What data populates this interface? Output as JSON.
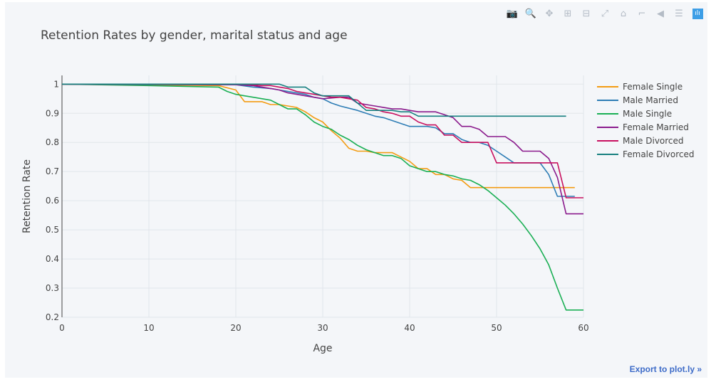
{
  "modebar": {
    "buttons": [
      {
        "name": "camera-icon",
        "glyph": "📷"
      },
      {
        "name": "zoom-icon",
        "glyph": "🔍"
      },
      {
        "name": "pan-icon",
        "glyph": "✥"
      },
      {
        "name": "zoom-in-icon",
        "glyph": "⊞"
      },
      {
        "name": "zoom-out-icon",
        "glyph": "⊟"
      },
      {
        "name": "autoscale-icon",
        "glyph": "⤢"
      },
      {
        "name": "home-icon",
        "glyph": "⌂"
      },
      {
        "name": "spike-lines-icon",
        "glyph": "⌐"
      },
      {
        "name": "hover-closest-icon",
        "glyph": "◀"
      },
      {
        "name": "hover-compare-icon",
        "glyph": "☰"
      },
      {
        "name": "plotly-logo-icon",
        "glyph": "ılı"
      }
    ]
  },
  "export_link": "Export to plot.ly »",
  "chart_data": {
    "type": "line",
    "title": "Retention Rates by gender, marital status and age",
    "xlabel": "Age",
    "ylabel": "Retention Rate",
    "xlim": [
      0,
      60
    ],
    "ylim": [
      0.2,
      1.03
    ],
    "xticks": [
      0,
      10,
      20,
      30,
      40,
      50,
      60
    ],
    "yticks": [
      0.2,
      0.3,
      0.4,
      0.5,
      0.6,
      0.7,
      0.8,
      0.9,
      1
    ],
    "grid": true,
    "legend_position": "right",
    "series": [
      {
        "name": "Female Single",
        "color": "#f39c12",
        "x": [
          0,
          18,
          20,
          21,
          23,
          24,
          25,
          26,
          27,
          28,
          29,
          30,
          31,
          32,
          33,
          34,
          35,
          36,
          37,
          38,
          39,
          40,
          41,
          42,
          43,
          44,
          45,
          46,
          47,
          48,
          49,
          50,
          55,
          58,
          59
        ],
        "y": [
          1,
          0.995,
          0.98,
          0.94,
          0.94,
          0.93,
          0.93,
          0.925,
          0.92,
          0.905,
          0.885,
          0.87,
          0.84,
          0.815,
          0.78,
          0.77,
          0.77,
          0.765,
          0.765,
          0.765,
          0.75,
          0.735,
          0.71,
          0.71,
          0.69,
          0.69,
          0.675,
          0.67,
          0.645,
          0.645,
          0.645,
          0.645,
          0.645,
          0.645,
          0.645
        ]
      },
      {
        "name": "Male Married",
        "color": "#2e7db5",
        "x": [
          0,
          20,
          22,
          24,
          25,
          26,
          27,
          28,
          29,
          30,
          31,
          32,
          34,
          35,
          36,
          37,
          38,
          39,
          40,
          41,
          42,
          43,
          44,
          45,
          46,
          47,
          48,
          49,
          50,
          51,
          52,
          53,
          54,
          55,
          56,
          57,
          58,
          59
        ],
        "y": [
          1,
          0.998,
          0.99,
          0.985,
          0.98,
          0.975,
          0.97,
          0.965,
          0.955,
          0.95,
          0.935,
          0.925,
          0.91,
          0.9,
          0.89,
          0.885,
          0.875,
          0.865,
          0.855,
          0.855,
          0.855,
          0.85,
          0.83,
          0.83,
          0.81,
          0.8,
          0.8,
          0.79,
          0.77,
          0.75,
          0.73,
          0.73,
          0.73,
          0.73,
          0.69,
          0.615,
          0.615,
          0.615
        ]
      },
      {
        "name": "Male Single",
        "color": "#1aaf54",
        "x": [
          0,
          10,
          18,
          19,
          20,
          21,
          22,
          24,
          25,
          26,
          27,
          28,
          29,
          30,
          31,
          32,
          33,
          34,
          35,
          36,
          37,
          38,
          39,
          40,
          41,
          42,
          43,
          44,
          45,
          46,
          47,
          48,
          49,
          50,
          51,
          52,
          53,
          54,
          55,
          56,
          57,
          58,
          59,
          60
        ],
        "y": [
          1,
          0.995,
          0.99,
          0.975,
          0.965,
          0.96,
          0.955,
          0.945,
          0.93,
          0.915,
          0.915,
          0.895,
          0.87,
          0.855,
          0.845,
          0.825,
          0.81,
          0.79,
          0.775,
          0.765,
          0.755,
          0.755,
          0.745,
          0.72,
          0.71,
          0.7,
          0.7,
          0.69,
          0.685,
          0.675,
          0.67,
          0.655,
          0.635,
          0.61,
          0.585,
          0.555,
          0.52,
          0.48,
          0.435,
          0.38,
          0.3,
          0.225,
          0.225,
          0.225
        ]
      },
      {
        "name": "Female Married",
        "color": "#8a1a8c",
        "x": [
          0,
          20,
          22,
          23,
          24,
          25,
          26,
          27,
          28,
          29,
          30,
          32,
          33,
          34,
          35,
          36,
          37,
          38,
          39,
          40,
          41,
          42,
          43,
          44,
          45,
          46,
          47,
          48,
          49,
          50,
          51,
          52,
          53,
          54,
          55,
          56,
          57,
          58,
          59,
          60
        ],
        "y": [
          1,
          0.998,
          0.995,
          0.99,
          0.985,
          0.98,
          0.97,
          0.965,
          0.96,
          0.955,
          0.95,
          0.955,
          0.955,
          0.935,
          0.93,
          0.925,
          0.92,
          0.915,
          0.915,
          0.91,
          0.905,
          0.905,
          0.905,
          0.895,
          0.885,
          0.855,
          0.855,
          0.845,
          0.82,
          0.82,
          0.82,
          0.8,
          0.77,
          0.77,
          0.77,
          0.745,
          0.68,
          0.555,
          0.555,
          0.555
        ]
      },
      {
        "name": "Male Divorced",
        "color": "#c8105f",
        "x": [
          0,
          21,
          23,
          24,
          25,
          26,
          27,
          28,
          29,
          30,
          31,
          32,
          33,
          34,
          35,
          36,
          37,
          38,
          39,
          40,
          41,
          42,
          43,
          44,
          45,
          46,
          47,
          48,
          49,
          50,
          51,
          52,
          53,
          54,
          55,
          56,
          57,
          58,
          59,
          60
        ],
        "y": [
          1,
          1,
          0.995,
          0.995,
          0.99,
          0.985,
          0.975,
          0.97,
          0.965,
          0.96,
          0.955,
          0.955,
          0.95,
          0.945,
          0.92,
          0.915,
          0.905,
          0.9,
          0.89,
          0.89,
          0.87,
          0.86,
          0.86,
          0.825,
          0.825,
          0.8,
          0.8,
          0.8,
          0.8,
          0.73,
          0.73,
          0.73,
          0.73,
          0.73,
          0.73,
          0.73,
          0.73,
          0.61,
          0.61,
          0.61
        ]
      },
      {
        "name": "Female Divorced",
        "color": "#167f7f",
        "x": [
          0,
          25,
          26,
          28,
          29,
          30,
          33,
          34,
          35,
          36,
          38,
          39,
          40,
          41,
          42,
          44,
          45,
          46,
          50,
          55,
          58
        ],
        "y": [
          1,
          1,
          0.99,
          0.99,
          0.97,
          0.96,
          0.96,
          0.935,
          0.91,
          0.91,
          0.91,
          0.905,
          0.905,
          0.89,
          0.89,
          0.89,
          0.89,
          0.89,
          0.89,
          0.89,
          0.89
        ]
      }
    ]
  }
}
